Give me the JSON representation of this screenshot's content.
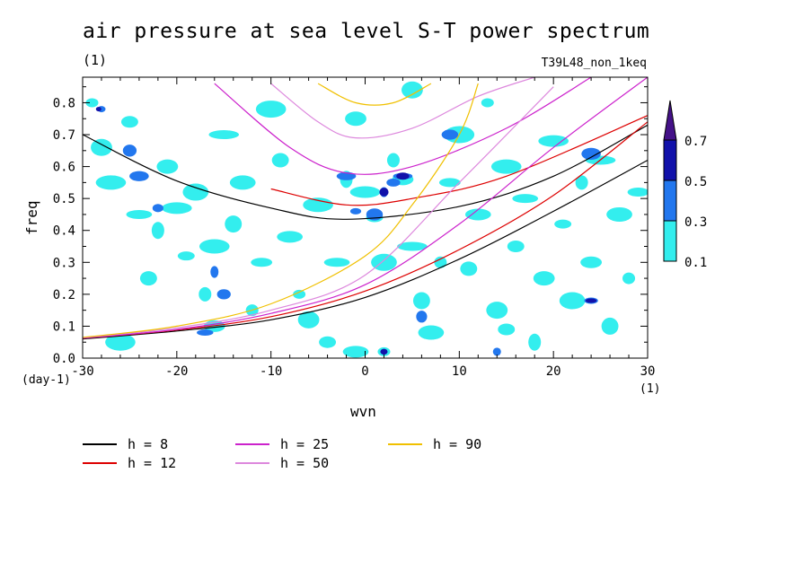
{
  "chart_data": {
    "type": "heatmap",
    "title": "air pressure at sea level S-T power spectrum",
    "subtitle": "(1)",
    "run_label": "T39L48_non_1keq",
    "xlabel": "wvn",
    "ylabel": "freq",
    "x_unit": "(1)",
    "y_unit": "(day-1)",
    "xlim": [
      -30,
      30
    ],
    "ylim": [
      0,
      0.88
    ],
    "x_ticks": [
      -30,
      -20,
      -10,
      0,
      10,
      20,
      30
    ],
    "y_ticks": [
      0.0,
      0.1,
      0.2,
      0.3,
      0.4,
      0.5,
      0.6,
      0.7,
      0.8
    ],
    "x_tick_labels": [
      "-30",
      "-20",
      "-10",
      "0",
      "10",
      "20",
      "30"
    ],
    "y_tick_labels": [
      "0.0",
      "0.1",
      "0.2",
      "0.3",
      "0.4",
      "0.5",
      "0.6",
      "0.7",
      "0.8"
    ],
    "colorbar": {
      "levels": [
        0.1,
        0.3,
        0.5,
        0.7
      ],
      "labels": [
        "0.1",
        "0.3",
        "0.5",
        "0.7"
      ],
      "colors": [
        "#33eeee",
        "#2277ee",
        "#1111aa",
        "#441188"
      ]
    },
    "legend_placement": "bottom",
    "curves": [
      {
        "name": "h =  8",
        "color": "#000000",
        "series": [
          {
            "kind": "symmetric",
            "x": [
              -30,
              -20,
              -10,
              -2,
              10,
              20,
              30
            ],
            "y": [
              0.7,
              0.555,
              0.47,
              0.435,
              0.475,
              0.57,
              0.73
            ]
          },
          {
            "kind": "kelvin",
            "x": [
              -30,
              -20,
              -10,
              0,
              10,
              20,
              30
            ],
            "y": [
              0.06,
              0.085,
              0.12,
              0.19,
              0.31,
              0.46,
              0.62
            ]
          }
        ]
      },
      {
        "name": "h = 12",
        "color": "#dd0000",
        "series": [
          {
            "kind": "symmetric",
            "x": [
              -10,
              -2,
              5,
              15,
              30
            ],
            "y": [
              0.53,
              0.48,
              0.5,
              0.57,
              0.76
            ]
          },
          {
            "kind": "kelvin",
            "x": [
              -30,
              -20,
              -10,
              0,
              10,
              20,
              30
            ],
            "y": [
              0.062,
              0.088,
              0.13,
              0.21,
              0.34,
              0.51,
              0.74
            ]
          }
        ]
      },
      {
        "name": "h = 25",
        "color": "#cc22cc",
        "series": [
          {
            "kind": "symmetric",
            "x": [
              -16,
              -8,
              -2,
              5,
              15,
              24
            ],
            "y": [
              0.86,
              0.66,
              0.58,
              0.6,
              0.72,
              0.88
            ]
          },
          {
            "kind": "kelvin",
            "x": [
              -30,
              -20,
              -10,
              0,
              10,
              20,
              30
            ],
            "y": [
              0.063,
              0.09,
              0.14,
              0.23,
              0.42,
              0.66,
              0.88
            ]
          }
        ]
      },
      {
        "name": "h = 50",
        "color": "#dd88dd",
        "series": [
          {
            "kind": "symmetric",
            "x": [
              -10,
              -5,
              -1,
              5,
              12,
              18
            ],
            "y": [
              0.86,
              0.74,
              0.69,
              0.72,
              0.82,
              0.88
            ]
          },
          {
            "kind": "kelvin",
            "x": [
              -30,
              -20,
              -10,
              0,
              10,
              20
            ],
            "y": [
              0.064,
              0.095,
              0.15,
              0.26,
              0.55,
              0.85
            ]
          }
        ]
      },
      {
        "name": "h = 90",
        "color": "#f0c000",
        "series": [
          {
            "kind": "symmetric",
            "x": [
              -5,
              -1,
              3,
              7
            ],
            "y": [
              0.86,
              0.8,
              0.8,
              0.86
            ]
          },
          {
            "kind": "kelvin",
            "x": [
              -30,
              -20,
              -10,
              0,
              5,
              10,
              12
            ],
            "y": [
              0.065,
              0.1,
              0.17,
              0.32,
              0.48,
              0.7,
              0.86
            ]
          }
        ]
      }
    ],
    "contour_patches": {
      "level_0_1": [
        [
          -29,
          0.8
        ],
        [
          -28,
          0.66
        ],
        [
          -27,
          0.55
        ],
        [
          -25,
          0.74
        ],
        [
          -24,
          0.45
        ],
        [
          -22,
          0.4
        ],
        [
          -21,
          0.6
        ],
        [
          -20,
          0.47
        ],
        [
          -19,
          0.32
        ],
        [
          -18,
          0.52
        ],
        [
          -17,
          0.2
        ],
        [
          -16,
          0.1
        ],
        [
          -15,
          0.7
        ],
        [
          -14,
          0.42
        ],
        [
          -13,
          0.55
        ],
        [
          -12,
          0.15
        ],
        [
          -11,
          0.3
        ],
        [
          -10,
          0.78
        ],
        [
          -9,
          0.62
        ],
        [
          -8,
          0.38
        ],
        [
          -7,
          0.2
        ],
        [
          -6,
          0.12
        ],
        [
          -5,
          0.48
        ],
        [
          -4,
          0.05
        ],
        [
          -3,
          0.3
        ],
        [
          -2,
          0.56
        ],
        [
          -1,
          0.75
        ],
        [
          0,
          0.52
        ],
        [
          1,
          0.44
        ],
        [
          2,
          0.3
        ],
        [
          3,
          0.62
        ],
        [
          4,
          0.56
        ],
        [
          5,
          0.35
        ],
        [
          6,
          0.18
        ],
        [
          7,
          0.08
        ],
        [
          8,
          0.3
        ],
        [
          9,
          0.55
        ],
        [
          10,
          0.7
        ],
        [
          11,
          0.28
        ],
        [
          12,
          0.45
        ],
        [
          13,
          0.8
        ],
        [
          14,
          0.15
        ],
        [
          15,
          0.6
        ],
        [
          16,
          0.35
        ],
        [
          17,
          0.5
        ],
        [
          18,
          0.05
        ],
        [
          19,
          0.25
        ],
        [
          20,
          0.68
        ],
        [
          21,
          0.42
        ],
        [
          22,
          0.18
        ],
        [
          23,
          0.55
        ],
        [
          24,
          0.3
        ],
        [
          25,
          0.62
        ],
        [
          26,
          0.1
        ],
        [
          27,
          0.45
        ],
        [
          28,
          0.25
        ],
        [
          29,
          0.52
        ],
        [
          -26,
          0.05
        ],
        [
          -23,
          0.25
        ],
        [
          -1,
          0.02
        ],
        [
          2,
          0.02
        ],
        [
          5,
          0.84
        ],
        [
          -16,
          0.35
        ],
        [
          15,
          0.09
        ]
      ],
      "level_0_3": [
        [
          -28,
          0.78
        ],
        [
          -25,
          0.65
        ],
        [
          -24,
          0.57
        ],
        [
          -22,
          0.47
        ],
        [
          -17,
          0.08
        ],
        [
          -16,
          0.27
        ],
        [
          -15,
          0.2
        ],
        [
          -2,
          0.57
        ],
        [
          -1,
          0.46
        ],
        [
          1,
          0.45
        ],
        [
          2,
          0.52
        ],
        [
          3,
          0.55
        ],
        [
          4,
          0.57
        ],
        [
          6,
          0.13
        ],
        [
          9,
          0.7
        ],
        [
          14,
          0.02
        ],
        [
          24,
          0.18
        ],
        [
          24,
          0.64
        ]
      ],
      "level_0_5": [
        [
          -28.3,
          0.78
        ],
        [
          2,
          0.52
        ],
        [
          4,
          0.57
        ],
        [
          2,
          0.02
        ],
        [
          24,
          0.18
        ]
      ]
    }
  },
  "legend": {
    "items": [
      {
        "label": "h =  8",
        "color": "#000000"
      },
      {
        "label": "h = 12",
        "color": "#dd0000"
      },
      {
        "label": "h = 25",
        "color": "#cc22cc"
      },
      {
        "label": "h = 50",
        "color": "#dd88dd"
      },
      {
        "label": "h = 90",
        "color": "#f0c000"
      }
    ]
  }
}
